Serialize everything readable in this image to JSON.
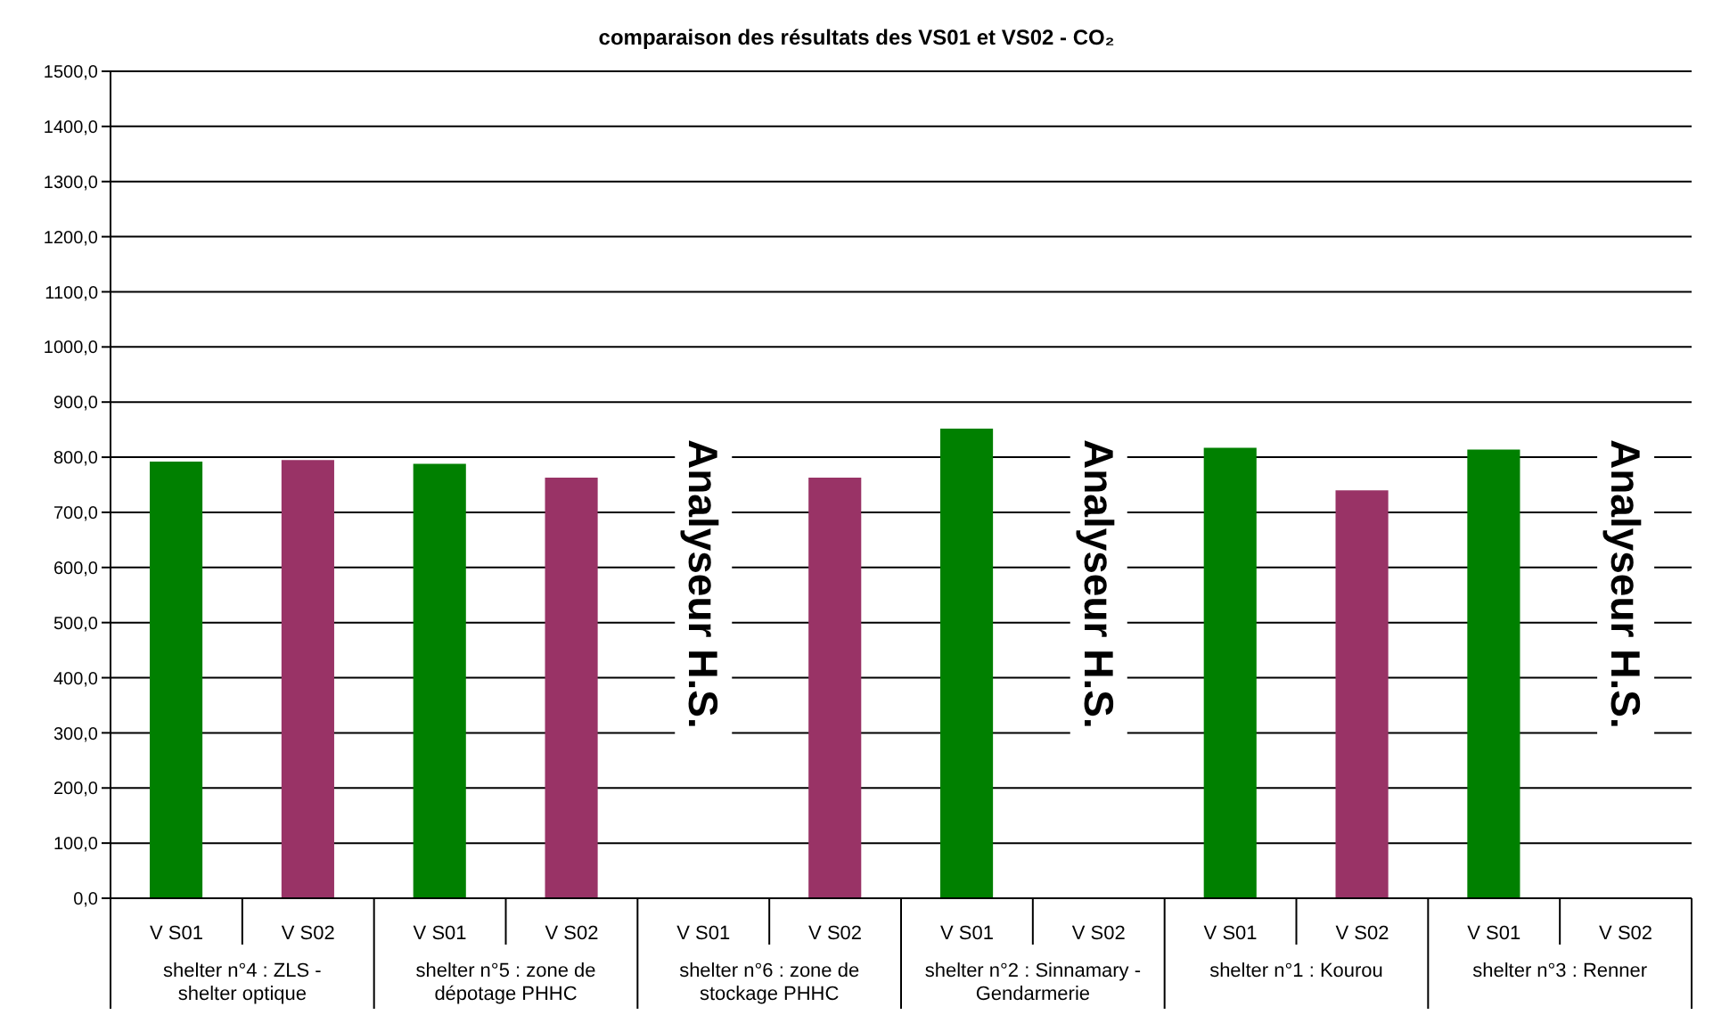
{
  "chart_data": {
    "type": "bar",
    "title": "comparaison des résultats des VS01 et VS02 - CO₂",
    "categories": [
      "V S01",
      "V S02",
      "V S01",
      "V S02",
      "V S01",
      "V S02",
      "V S01",
      "V S02",
      "V S01",
      "V S02",
      "V S01",
      "V S02"
    ],
    "values": [
      792,
      795,
      788,
      763,
      null,
      763,
      852,
      null,
      817,
      740,
      814,
      null
    ],
    "colors": [
      "#008000",
      "#993366",
      "#008000",
      "#993366",
      "#008000",
      "#993366",
      "#008000",
      "#993366",
      "#008000",
      "#993366",
      "#008000",
      "#993366"
    ],
    "ylim": [
      0,
      1500
    ],
    "yticks": [
      {
        "value": 0,
        "label": "0,0"
      },
      {
        "value": 100,
        "label": "100,0"
      },
      {
        "value": 200,
        "label": "200,0"
      },
      {
        "value": 300,
        "label": "300,0"
      },
      {
        "value": 400,
        "label": "400,0"
      },
      {
        "value": 500,
        "label": "500,0"
      },
      {
        "value": 600,
        "label": "600,0"
      },
      {
        "value": 700,
        "label": "700,0"
      },
      {
        "value": 800,
        "label": "800,0"
      },
      {
        "value": 900,
        "label": "900,0"
      },
      {
        "value": 1000,
        "label": "1000,0"
      },
      {
        "value": 1100,
        "label": "1100,0"
      },
      {
        "value": 1200,
        "label": "1200,0"
      },
      {
        "value": 1300,
        "label": "1300,0"
      },
      {
        "value": 1400,
        "label": "1400,0"
      },
      {
        "value": 1500,
        "label": "1500,0"
      }
    ],
    "grid": "y",
    "legend": false,
    "annotations": [
      "shelter n°4 : ZLS - shelter optique",
      "shelter n°5 : zone de dépotage PHHC",
      "shelter n°6 : zone de stockage PHHC",
      "shelter n°2 : Sinnamary - Gendarmerie",
      "shelter n°1 : Kourou",
      "shelter n°3 : Renner",
      "Analyseur H.S.",
      "Analyseur H.S.",
      "Analyseur H.S."
    ]
  }
}
